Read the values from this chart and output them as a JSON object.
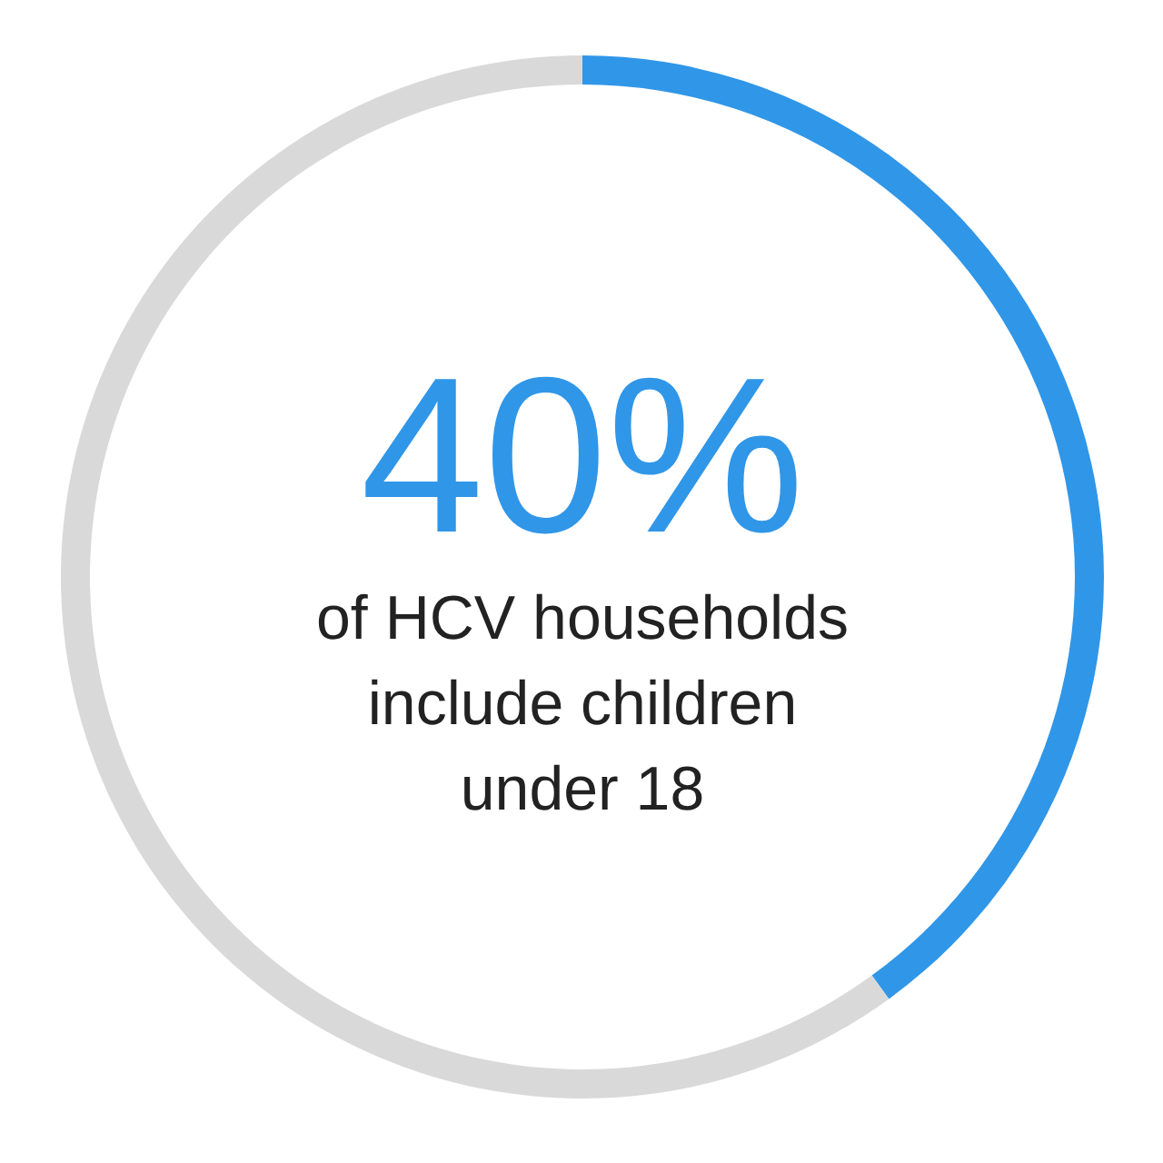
{
  "chart_data": {
    "type": "donut",
    "categories": [
      null,
      null
    ],
    "values": [
      40,
      60
    ],
    "colors": [
      "#3096e8",
      "#d9d9d9"
    ],
    "annotations": [
      "40%",
      "of HCV households include children under 18"
    ]
  }
}
